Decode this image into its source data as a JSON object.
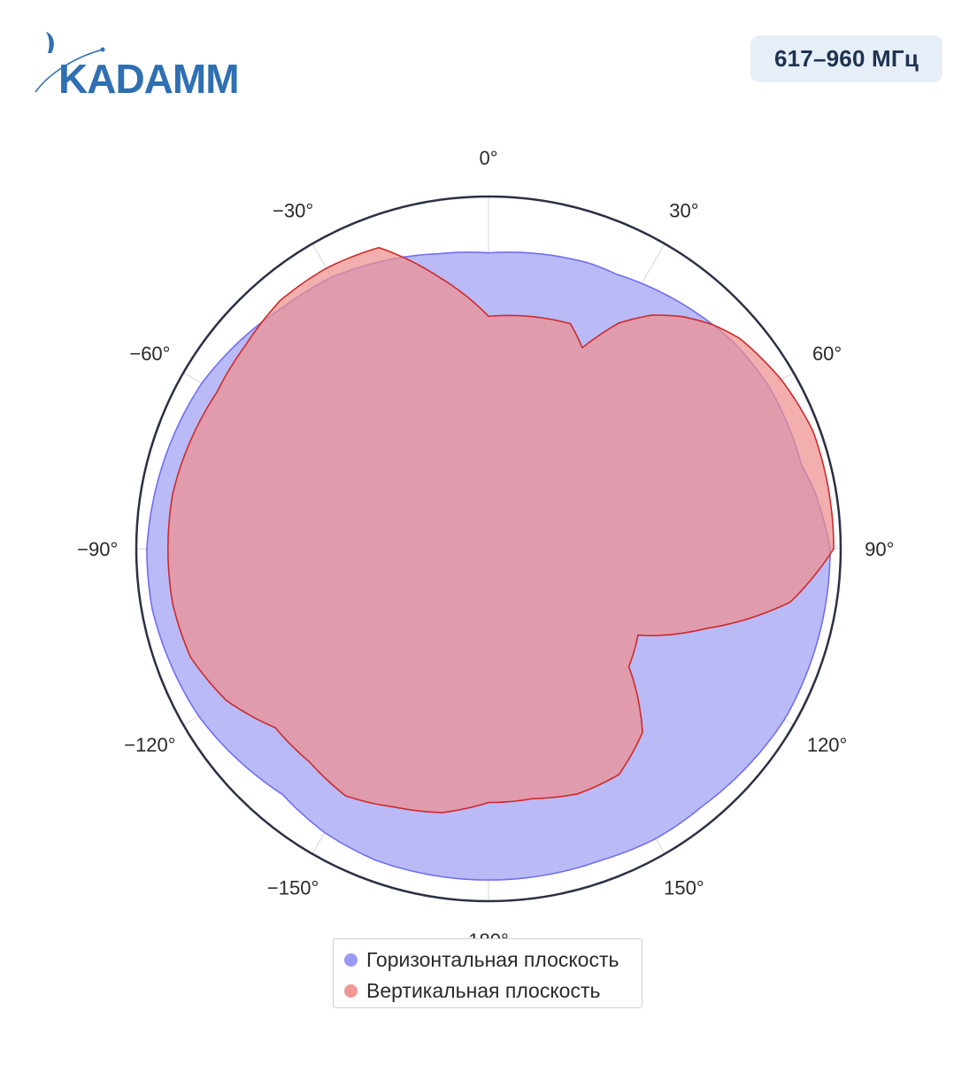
{
  "brand": {
    "logo_text": "KADAMM",
    "logo_color": "#2f6fb2"
  },
  "badge": {
    "label": "617–960 МГц"
  },
  "chart_data": {
    "type": "polar-area",
    "theta_unit": "deg",
    "direction": "clockwise",
    "zero_at": "top",
    "tick_labels": [
      "0°",
      "30°",
      "60°",
      "90°",
      "120°",
      "150°",
      "180°",
      "−150°",
      "−120°",
      "−90°",
      "−60°",
      "−30°"
    ],
    "tick_angles": [
      0,
      30,
      60,
      90,
      120,
      150,
      180,
      -150,
      -120,
      -90,
      -60,
      -30
    ],
    "radial_range": [
      0,
      1
    ],
    "radial_grid": [
      0.2,
      0.4,
      0.6,
      0.8,
      1.0
    ],
    "grid": true,
    "legend_position": "bottom",
    "series": [
      {
        "name": "Горизонтальная плоскость",
        "color": "#6f6ff0",
        "fill": "#b6b6f5",
        "theta": [
          0,
          10,
          20,
          25,
          30,
          35,
          40,
          45,
          50,
          60,
          70,
          75,
          80,
          90,
          100,
          110,
          120,
          130,
          140,
          150,
          160,
          170,
          180,
          -170,
          -160,
          -150,
          -140,
          -130,
          -120,
          -110,
          -100,
          -90,
          -80,
          -70,
          -60,
          -50,
          -40,
          -30,
          -20,
          -10
        ],
        "r": [
          0.84,
          0.85,
          0.86,
          0.86,
          0.87,
          0.88,
          0.89,
          0.9,
          0.91,
          0.92,
          0.92,
          0.92,
          0.94,
          0.97,
          0.97,
          0.97,
          0.97,
          0.96,
          0.95,
          0.95,
          0.94,
          0.94,
          0.94,
          0.94,
          0.94,
          0.93,
          0.91,
          0.93,
          0.95,
          0.96,
          0.97,
          0.97,
          0.96,
          0.95,
          0.94,
          0.92,
          0.9,
          0.89,
          0.87,
          0.85
        ]
      },
      {
        "name": "Вертикальная плоскость",
        "color": "#cc2b2b",
        "fill": "#ee8f8f",
        "theta": [
          0,
          10,
          20,
          25,
          30,
          35,
          40,
          45,
          50,
          60,
          70,
          80,
          90,
          100,
          110,
          120,
          130,
          140,
          150,
          160,
          170,
          180,
          -170,
          -160,
          -150,
          -140,
          -130,
          -120,
          -110,
          -100,
          -90,
          -80,
          -70,
          -60,
          -50,
          -40,
          -30,
          -20,
          -10
        ],
        "r": [
          0.66,
          0.67,
          0.68,
          0.63,
          0.74,
          0.81,
          0.86,
          0.9,
          0.93,
          0.96,
          0.98,
          0.98,
          0.98,
          0.87,
          0.66,
          0.49,
          0.52,
          0.68,
          0.74,
          0.74,
          0.72,
          0.72,
          0.76,
          0.78,
          0.81,
          0.79,
          0.79,
          0.86,
          0.9,
          0.91,
          0.91,
          0.91,
          0.9,
          0.89,
          0.9,
          0.92,
          0.92,
          0.91,
          0.78
        ]
      }
    ]
  }
}
